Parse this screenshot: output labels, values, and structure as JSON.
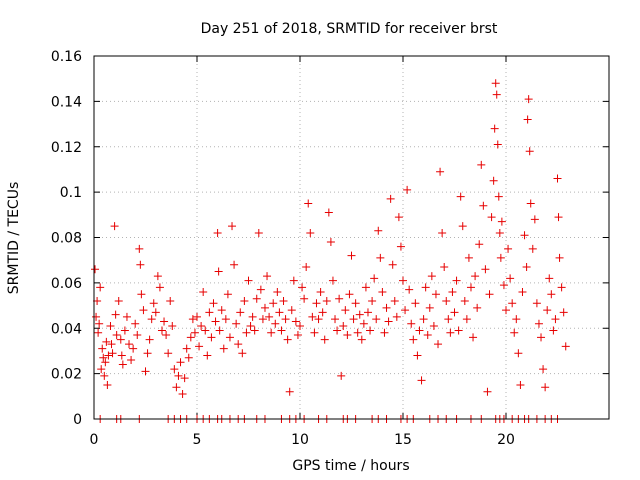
{
  "chart_data": {
    "type": "scatter",
    "title": "Day 251 of 2018, SRMTID for receiver brst",
    "xlabel": "GPS time / hours",
    "ylabel": "SRMTID / TECUs",
    "xlim": [
      0,
      25
    ],
    "ylim": [
      0,
      0.16
    ],
    "xticks": [
      0,
      5,
      10,
      15,
      20
    ],
    "xtick_labels": [
      "0",
      "5",
      "10",
      "15",
      "20"
    ],
    "yticks": [
      0,
      0.02,
      0.04,
      0.06,
      0.08,
      0.1,
      0.12,
      0.14,
      0.16
    ],
    "ytick_labels": [
      "0",
      "0.02",
      "0.04",
      "0.06",
      "0.08",
      "0.1",
      "0.12",
      "0.14",
      "0.16"
    ],
    "grid": true,
    "marker": "+",
    "color": "#e60000",
    "series": [
      {
        "name": "SRMTID",
        "points": [
          [
            0.05,
            0.066
          ],
          [
            0.1,
            0.045
          ],
          [
            0.15,
            0.052
          ],
          [
            0.2,
            0.038
          ],
          [
            0.25,
            0.042
          ],
          [
            0.3,
            0.058
          ],
          [
            0.35,
            0.022
          ],
          [
            0.4,
            0.031
          ],
          [
            0.45,
            0.027
          ],
          [
            0.5,
            0.019
          ],
          [
            0.55,
            0.025
          ],
          [
            0.6,
            0.034
          ],
          [
            0.65,
            0.015
          ],
          [
            0.7,
            0.028
          ],
          [
            0.8,
            0.041
          ],
          [
            0.85,
            0.033
          ],
          [
            0.9,
            0.029
          ],
          [
            1.0,
            0.085
          ],
          [
            1.05,
            0.046
          ],
          [
            1.1,
            0.037
          ],
          [
            1.2,
            0.052
          ],
          [
            1.3,
            0.035
          ],
          [
            1.35,
            0.028
          ],
          [
            1.4,
            0.024
          ],
          [
            1.5,
            0.039
          ],
          [
            1.6,
            0.045
          ],
          [
            1.7,
            0.033
          ],
          [
            1.8,
            0.026
          ],
          [
            1.9,
            0.031
          ],
          [
            2.0,
            0.042
          ],
          [
            2.1,
            0.037
          ],
          [
            2.2,
            0.075
          ],
          [
            2.25,
            0.068
          ],
          [
            2.3,
            0.055
          ],
          [
            2.4,
            0.048
          ],
          [
            2.5,
            0.021
          ],
          [
            2.6,
            0.029
          ],
          [
            2.7,
            0.035
          ],
          [
            2.8,
            0.044
          ],
          [
            2.9,
            0.051
          ],
          [
            3.0,
            0.047
          ],
          [
            3.1,
            0.063
          ],
          [
            3.2,
            0.058
          ],
          [
            3.3,
            0.039
          ],
          [
            3.4,
            0.043
          ],
          [
            3.5,
            0.037
          ],
          [
            3.6,
            0.029
          ],
          [
            3.7,
            0.052
          ],
          [
            3.8,
            0.041
          ],
          [
            3.9,
            0.022
          ],
          [
            4.0,
            0.014
          ],
          [
            4.1,
            0.019
          ],
          [
            4.2,
            0.025
          ],
          [
            4.3,
            0.011
          ],
          [
            4.4,
            0.018
          ],
          [
            4.5,
            0.031
          ],
          [
            4.6,
            0.027
          ],
          [
            4.7,
            0.036
          ],
          [
            4.8,
            0.044
          ],
          [
            4.9,
            0.038
          ],
          [
            5.0,
            0.045
          ],
          [
            5.1,
            0.032
          ],
          [
            5.2,
            0.041
          ],
          [
            5.3,
            0.056
          ],
          [
            5.4,
            0.039
          ],
          [
            5.5,
            0.028
          ],
          [
            5.6,
            0.047
          ],
          [
            5.7,
            0.036
          ],
          [
            5.8,
            0.051
          ],
          [
            5.9,
            0.043
          ],
          [
            6.0,
            0.082
          ],
          [
            6.05,
            0.065
          ],
          [
            6.1,
            0.039
          ],
          [
            6.2,
            0.048
          ],
          [
            6.3,
            0.031
          ],
          [
            6.4,
            0.044
          ],
          [
            6.5,
            0.055
          ],
          [
            6.6,
            0.036
          ],
          [
            6.7,
            0.085
          ],
          [
            6.8,
            0.068
          ],
          [
            6.9,
            0.042
          ],
          [
            7.0,
            0.033
          ],
          [
            7.1,
            0.047
          ],
          [
            7.2,
            0.029
          ],
          [
            7.3,
            0.052
          ],
          [
            7.4,
            0.038
          ],
          [
            7.5,
            0.061
          ],
          [
            7.6,
            0.041
          ],
          [
            7.7,
            0.045
          ],
          [
            7.8,
            0.039
          ],
          [
            7.9,
            0.053
          ],
          [
            8.0,
            0.082
          ],
          [
            8.1,
            0.057
          ],
          [
            8.2,
            0.044
          ],
          [
            8.3,
            0.049
          ],
          [
            8.4,
            0.063
          ],
          [
            8.5,
            0.045
          ],
          [
            8.6,
            0.038
          ],
          [
            8.7,
            0.051
          ],
          [
            8.8,
            0.042
          ],
          [
            8.9,
            0.056
          ],
          [
            9.0,
            0.047
          ],
          [
            9.1,
            0.039
          ],
          [
            9.2,
            0.052
          ],
          [
            9.3,
            0.044
          ],
          [
            9.4,
            0.035
          ],
          [
            9.5,
            0.012
          ],
          [
            9.6,
            0.048
          ],
          [
            9.7,
            0.061
          ],
          [
            9.8,
            0.043
          ],
          [
            9.9,
            0.037
          ],
          [
            10.0,
            0.041
          ],
          [
            10.1,
            0.058
          ],
          [
            10.2,
            0.053
          ],
          [
            10.3,
            0.067
          ],
          [
            10.4,
            0.095
          ],
          [
            10.5,
            0.082
          ],
          [
            10.6,
            0.045
          ],
          [
            10.7,
            0.038
          ],
          [
            10.8,
            0.051
          ],
          [
            10.9,
            0.044
          ],
          [
            11.0,
            0.056
          ],
          [
            11.1,
            0.047
          ],
          [
            11.2,
            0.035
          ],
          [
            11.3,
            0.052
          ],
          [
            11.4,
            0.091
          ],
          [
            11.5,
            0.078
          ],
          [
            11.6,
            0.061
          ],
          [
            11.7,
            0.044
          ],
          [
            11.8,
            0.039
          ],
          [
            11.9,
            0.053
          ],
          [
            12.0,
            0.019
          ],
          [
            12.1,
            0.041
          ],
          [
            12.2,
            0.048
          ],
          [
            12.3,
            0.037
          ],
          [
            12.4,
            0.055
          ],
          [
            12.5,
            0.072
          ],
          [
            12.6,
            0.044
          ],
          [
            12.7,
            0.051
          ],
          [
            12.8,
            0.038
          ],
          [
            12.9,
            0.046
          ],
          [
            13.0,
            0.035
          ],
          [
            13.1,
            0.042
          ],
          [
            13.2,
            0.058
          ],
          [
            13.3,
            0.047
          ],
          [
            13.4,
            0.039
          ],
          [
            13.5,
            0.052
          ],
          [
            13.6,
            0.062
          ],
          [
            13.7,
            0.044
          ],
          [
            13.8,
            0.083
          ],
          [
            13.9,
            0.071
          ],
          [
            14.0,
            0.056
          ],
          [
            14.1,
            0.038
          ],
          [
            14.2,
            0.049
          ],
          [
            14.3,
            0.043
          ],
          [
            14.4,
            0.097
          ],
          [
            14.5,
            0.068
          ],
          [
            14.6,
            0.052
          ],
          [
            14.7,
            0.045
          ],
          [
            14.8,
            0.089
          ],
          [
            14.9,
            0.076
          ],
          [
            15.0,
            0.061
          ],
          [
            15.1,
            0.048
          ],
          [
            15.2,
            0.101
          ],
          [
            15.3,
            0.057
          ],
          [
            15.4,
            0.042
          ],
          [
            15.5,
            0.035
          ],
          [
            15.6,
            0.051
          ],
          [
            15.7,
            0.028
          ],
          [
            15.8,
            0.039
          ],
          [
            15.9,
            0.017
          ],
          [
            16.0,
            0.044
          ],
          [
            16.1,
            0.058
          ],
          [
            16.2,
            0.037
          ],
          [
            16.3,
            0.049
          ],
          [
            16.4,
            0.063
          ],
          [
            16.5,
            0.041
          ],
          [
            16.6,
            0.055
          ],
          [
            16.7,
            0.033
          ],
          [
            16.8,
            0.109
          ],
          [
            16.9,
            0.082
          ],
          [
            17.0,
            0.067
          ],
          [
            17.1,
            0.052
          ],
          [
            17.2,
            0.044
          ],
          [
            17.3,
            0.038
          ],
          [
            17.4,
            0.056
          ],
          [
            17.5,
            0.047
          ],
          [
            17.6,
            0.061
          ],
          [
            17.7,
            0.039
          ],
          [
            17.8,
            0.098
          ],
          [
            17.9,
            0.085
          ],
          [
            18.0,
            0.052
          ],
          [
            18.1,
            0.044
          ],
          [
            18.2,
            0.071
          ],
          [
            18.3,
            0.058
          ],
          [
            18.4,
            0.036
          ],
          [
            18.5,
            0.063
          ],
          [
            18.6,
            0.049
          ],
          [
            18.7,
            0.077
          ],
          [
            18.8,
            0.112
          ],
          [
            18.9,
            0.094
          ],
          [
            19.0,
            0.066
          ],
          [
            19.1,
            0.012
          ],
          [
            19.2,
            0.055
          ],
          [
            19.3,
            0.089
          ],
          [
            19.4,
            0.105
          ],
          [
            19.45,
            0.128
          ],
          [
            19.5,
            0.148
          ],
          [
            19.55,
            0.143
          ],
          [
            19.6,
            0.121
          ],
          [
            19.65,
            0.098
          ],
          [
            19.7,
            0.082
          ],
          [
            19.75,
            0.071
          ],
          [
            19.8,
            0.087
          ],
          [
            19.9,
            0.059
          ],
          [
            20.0,
            0.048
          ],
          [
            20.1,
            0.075
          ],
          [
            20.2,
            0.062
          ],
          [
            20.3,
            0.051
          ],
          [
            20.4,
            0.038
          ],
          [
            20.5,
            0.044
          ],
          [
            20.6,
            0.029
          ],
          [
            20.7,
            0.015
          ],
          [
            20.8,
            0.056
          ],
          [
            20.9,
            0.081
          ],
          [
            21.0,
            0.067
          ],
          [
            21.05,
            0.132
          ],
          [
            21.1,
            0.141
          ],
          [
            21.15,
            0.118
          ],
          [
            21.2,
            0.095
          ],
          [
            21.3,
            0.075
          ],
          [
            21.4,
            0.088
          ],
          [
            21.5,
            0.051
          ],
          [
            21.6,
            0.042
          ],
          [
            21.7,
            0.036
          ],
          [
            21.8,
            0.022
          ],
          [
            21.9,
            0.014
          ],
          [
            22.0,
            0.048
          ],
          [
            22.1,
            0.062
          ],
          [
            22.2,
            0.055
          ],
          [
            22.3,
            0.039
          ],
          [
            22.4,
            0.044
          ],
          [
            22.5,
            0.106
          ],
          [
            22.55,
            0.089
          ],
          [
            22.6,
            0.071
          ],
          [
            22.7,
            0.058
          ],
          [
            22.8,
            0.047
          ],
          [
            22.9,
            0.032
          ],
          [
            0.3,
            0.0
          ],
          [
            1.1,
            0.0
          ],
          [
            1.3,
            0.0
          ],
          [
            2.2,
            0.0
          ],
          [
            3.6,
            0.0
          ],
          [
            3.9,
            0.0
          ],
          [
            4.2,
            0.0
          ],
          [
            4.5,
            0.0
          ],
          [
            5.0,
            0.0
          ],
          [
            5.3,
            0.0
          ],
          [
            5.6,
            0.0
          ],
          [
            6.0,
            0.0
          ],
          [
            6.2,
            0.0
          ],
          [
            6.6,
            0.0
          ],
          [
            7.0,
            0.0
          ],
          [
            7.3,
            0.0
          ],
          [
            7.9,
            0.0
          ],
          [
            8.3,
            0.0
          ],
          [
            9.1,
            0.0
          ],
          [
            9.5,
            0.0
          ],
          [
            9.8,
            0.0
          ],
          [
            10.2,
            0.0
          ],
          [
            10.9,
            0.0
          ],
          [
            11.3,
            0.0
          ],
          [
            12.1,
            0.0
          ],
          [
            12.3,
            0.0
          ],
          [
            12.7,
            0.0
          ],
          [
            13.5,
            0.0
          ],
          [
            13.8,
            0.0
          ],
          [
            14.2,
            0.0
          ],
          [
            14.9,
            0.0
          ],
          [
            15.2,
            0.0
          ],
          [
            15.5,
            0.0
          ],
          [
            16.3,
            0.0
          ],
          [
            16.7,
            0.0
          ],
          [
            17.1,
            0.0
          ],
          [
            17.6,
            0.0
          ],
          [
            18.3,
            0.0
          ],
          [
            18.8,
            0.0
          ],
          [
            19.5,
            0.0
          ],
          [
            19.7,
            0.0
          ],
          [
            19.9,
            0.0
          ],
          [
            20.3,
            0.0
          ],
          [
            20.6,
            0.0
          ],
          [
            20.9,
            0.0
          ],
          [
            21.1,
            0.0
          ],
          [
            21.5,
            0.0
          ],
          [
            21.9,
            0.0
          ],
          [
            22.2,
            0.0
          ],
          [
            22.5,
            0.0
          ]
        ]
      }
    ]
  }
}
